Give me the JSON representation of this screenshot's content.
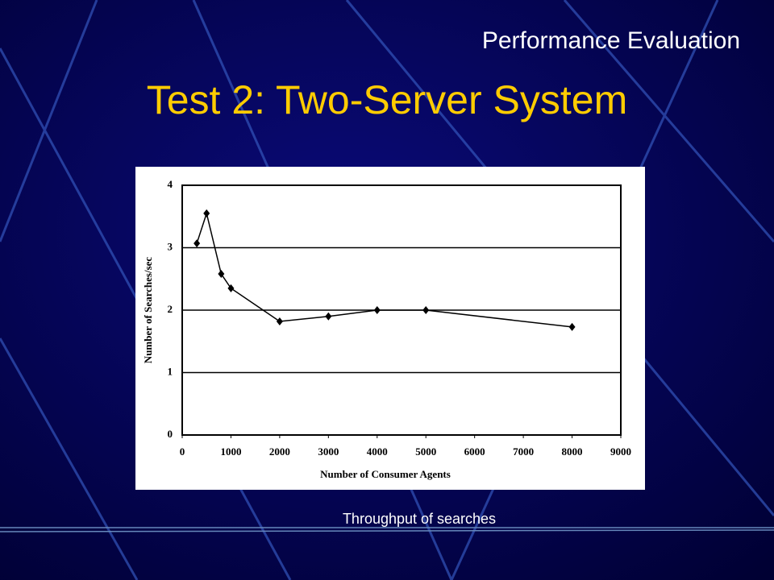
{
  "slide": {
    "section": "Performance Evaluation",
    "title": "Test 2: Two-Server System",
    "caption": "Throughput of searches"
  },
  "chart_data": {
    "type": "line",
    "xlabel": "Number of Consumer Agents",
    "ylabel": "Number of Searches/sec",
    "x": [
      300,
      500,
      800,
      1000,
      2000,
      3000,
      4000,
      5000,
      8000
    ],
    "series": [
      {
        "name": "Throughput",
        "color": "#000000",
        "values": [
          3.07,
          3.55,
          2.58,
          2.35,
          1.82,
          1.9,
          2.0,
          2.0,
          1.73
        ]
      }
    ],
    "xlim": [
      0,
      9000
    ],
    "xticks": [
      0,
      1000,
      2000,
      3000,
      4000,
      5000,
      6000,
      7000,
      8000,
      9000
    ],
    "ylim": [
      0,
      4
    ],
    "yticks": [
      0,
      1,
      2,
      3,
      4
    ],
    "grid": true
  }
}
